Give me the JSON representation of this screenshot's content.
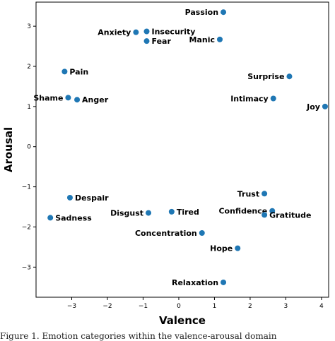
{
  "chart_data": {
    "type": "scatter",
    "title": "",
    "xlabel": "Valence",
    "ylabel": "Arousal",
    "xlim": [
      -4,
      4.2
    ],
    "ylim": [
      -3.75,
      3.6
    ],
    "xticks": [
      -3,
      -2,
      -1,
      0,
      1,
      2,
      3,
      4
    ],
    "yticks": [
      -3,
      -2,
      -1,
      0,
      1,
      2,
      3
    ],
    "xtick_labels": [
      "−3",
      "−2",
      "−1",
      "0",
      "1",
      "2",
      "3",
      "4"
    ],
    "ytick_labels": [
      "−3",
      "−2",
      "−1",
      "0",
      "1",
      "2",
      "3"
    ],
    "grid": false,
    "marker_color": "#1f77b4",
    "points": [
      {
        "label": "Passion",
        "x": 1.25,
        "y": 3.35,
        "anchor": "end"
      },
      {
        "label": "Anxiety",
        "x": -1.2,
        "y": 2.85,
        "anchor": "end"
      },
      {
        "label": "Insecurity",
        "x": -0.9,
        "y": 2.87,
        "anchor": "start"
      },
      {
        "label": "Fear",
        "x": -0.9,
        "y": 2.63,
        "anchor": "start"
      },
      {
        "label": "Manic",
        "x": 1.15,
        "y": 2.67,
        "anchor": "end"
      },
      {
        "label": "Pain",
        "x": -3.2,
        "y": 1.87,
        "anchor": "start"
      },
      {
        "label": "Surprise",
        "x": 3.1,
        "y": 1.75,
        "anchor": "end"
      },
      {
        "label": "Shame",
        "x": -3.1,
        "y": 1.22,
        "anchor": "end"
      },
      {
        "label": "Anger",
        "x": -2.85,
        "y": 1.17,
        "anchor": "start"
      },
      {
        "label": "Intimacy",
        "x": 2.65,
        "y": 1.2,
        "anchor": "end"
      },
      {
        "label": "Joy",
        "x": 4.1,
        "y": 1.0,
        "anchor": "end"
      },
      {
        "label": "Trust",
        "x": 2.4,
        "y": -1.17,
        "anchor": "end"
      },
      {
        "label": "Despair",
        "x": -3.05,
        "y": -1.27,
        "anchor": "start"
      },
      {
        "label": "Confidence",
        "x": 2.62,
        "y": -1.6,
        "anchor": "end"
      },
      {
        "label": "Gratitude",
        "x": 2.4,
        "y": -1.7,
        "anchor": "start"
      },
      {
        "label": "Sadness",
        "x": -3.6,
        "y": -1.77,
        "anchor": "start"
      },
      {
        "label": "Disgust",
        "x": -0.85,
        "y": -1.65,
        "anchor": "end"
      },
      {
        "label": "Tired",
        "x": -0.2,
        "y": -1.62,
        "anchor": "start"
      },
      {
        "label": "Concentration",
        "x": 0.65,
        "y": -2.15,
        "anchor": "end"
      },
      {
        "label": "Hope",
        "x": 1.65,
        "y": -2.53,
        "anchor": "end"
      },
      {
        "label": "Relaxation",
        "x": 1.25,
        "y": -3.38,
        "anchor": "end"
      }
    ]
  },
  "caption": "Figure 1. Emotion categories within the valence-arousal domain"
}
